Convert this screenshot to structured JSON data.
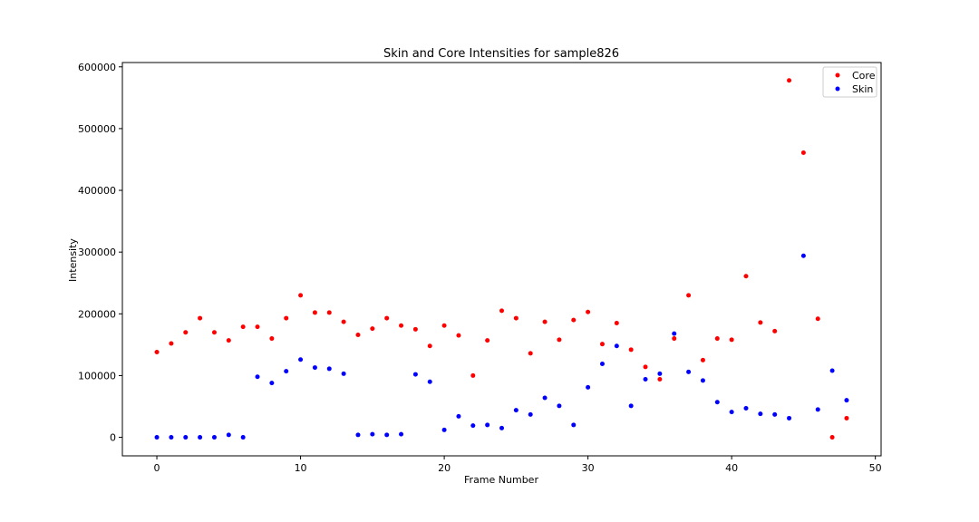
{
  "chart_data": {
    "type": "scatter",
    "title": "Skin and Core Intensities for sample826",
    "xlabel": "Frame Number",
    "ylabel": "Intensity",
    "xlim": [
      -2.4,
      50.4
    ],
    "ylim": [
      -30000,
      607000
    ],
    "xticks": [
      0,
      10,
      20,
      30,
      40,
      50
    ],
    "yticks": [
      0,
      100000,
      200000,
      300000,
      400000,
      500000,
      600000
    ],
    "legend_position": "top-right",
    "grid": false,
    "series": [
      {
        "name": "Core",
        "color": "#ff0000",
        "x": [
          0,
          1,
          2,
          3,
          4,
          5,
          6,
          7,
          8,
          9,
          10,
          11,
          12,
          13,
          14,
          15,
          16,
          17,
          18,
          19,
          20,
          21,
          22,
          23,
          24,
          25,
          26,
          27,
          28,
          29,
          30,
          31,
          32,
          33,
          34,
          35,
          36,
          37,
          38,
          39,
          40,
          41,
          42,
          43,
          44,
          45,
          46,
          47,
          48
        ],
        "y": [
          138000,
          152000,
          170000,
          193000,
          170000,
          157000,
          179000,
          179000,
          160000,
          193000,
          230000,
          202000,
          202000,
          187000,
          166000,
          176000,
          193000,
          181000,
          175000,
          148000,
          181000,
          165000,
          100000,
          157000,
          205000,
          193000,
          136000,
          187000,
          158000,
          190000,
          203000,
          151000,
          185000,
          142000,
          114000,
          94000,
          160000,
          230000,
          125000,
          160000,
          158000,
          261000,
          186000,
          172000,
          578000,
          461000,
          192000,
          0,
          31000
        ]
      },
      {
        "name": "Skin",
        "color": "#0000ff",
        "x": [
          0,
          1,
          2,
          3,
          4,
          5,
          6,
          7,
          8,
          9,
          10,
          11,
          12,
          13,
          14,
          15,
          16,
          17,
          18,
          19,
          20,
          21,
          22,
          23,
          24,
          25,
          26,
          27,
          28,
          29,
          30,
          31,
          32,
          33,
          34,
          35,
          36,
          37,
          38,
          39,
          40,
          41,
          42,
          43,
          44,
          45,
          46,
          47,
          48
        ],
        "y": [
          0,
          0,
          0,
          0,
          0,
          4000,
          0,
          98000,
          88000,
          107000,
          126000,
          113000,
          111000,
          103000,
          4000,
          5000,
          4000,
          5000,
          102000,
          90000,
          12000,
          34000,
          19000,
          20000,
          15000,
          44000,
          37000,
          64000,
          51000,
          20000,
          81000,
          119000,
          148000,
          51000,
          94000,
          103000,
          168000,
          106000,
          92000,
          57000,
          41000,
          47000,
          38000,
          37000,
          31000,
          294000,
          45000,
          108000,
          60000
        ]
      }
    ]
  }
}
